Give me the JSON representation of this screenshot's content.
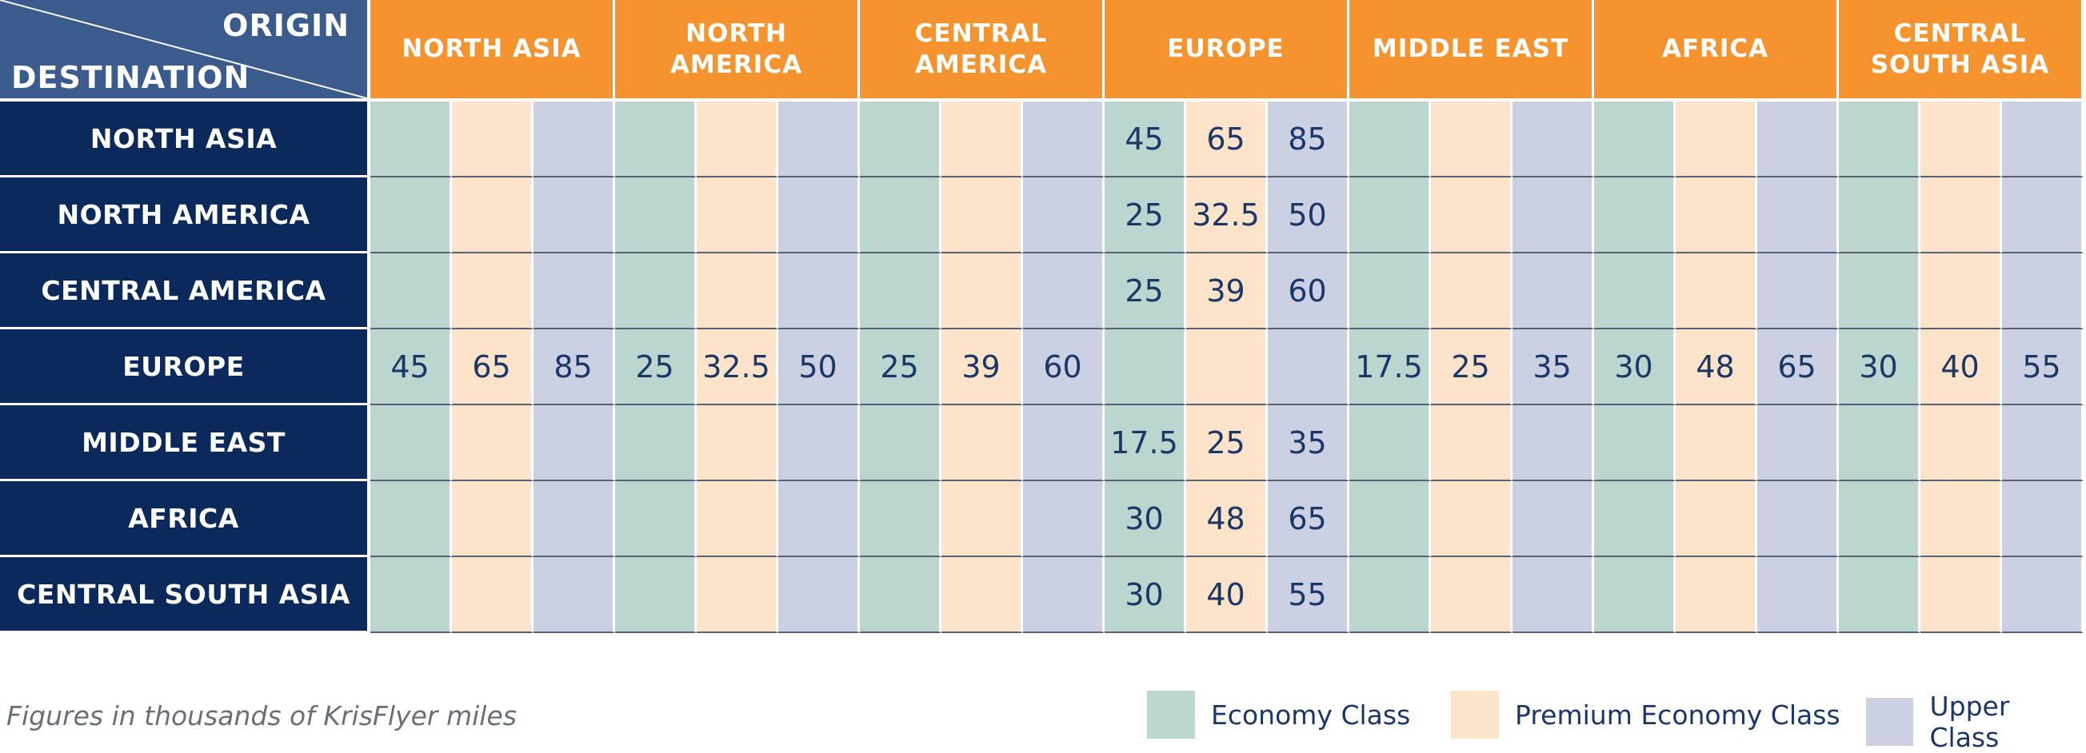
{
  "header": {
    "origin_label": "ORIGIN",
    "destination_label": "DESTINATION"
  },
  "origins": [
    "NORTH ASIA",
    "NORTH AMERICA",
    "CENTRAL AMERICA",
    "EUROPE",
    "MIDDLE EAST",
    "AFRICA",
    "CENTRAL SOUTH ASIA"
  ],
  "destinations": [
    "NORTH ASIA",
    "NORTH AMERICA",
    "CENTRAL AMERICA",
    "EUROPE",
    "MIDDLE EAST",
    "AFRICA",
    "CENTRAL SOUTH ASIA"
  ],
  "classes": [
    "Economy Class",
    "Premium Economy Class",
    "Upper Class"
  ],
  "values": [
    [
      [
        "",
        "",
        ""
      ],
      [
        "",
        "",
        ""
      ],
      [
        "",
        "",
        ""
      ],
      [
        "45",
        "65",
        "85"
      ],
      [
        "",
        "",
        ""
      ],
      [
        "",
        "",
        ""
      ],
      [
        "",
        "",
        ""
      ]
    ],
    [
      [
        "",
        "",
        ""
      ],
      [
        "",
        "",
        ""
      ],
      [
        "",
        "",
        ""
      ],
      [
        "25",
        "32.5",
        "50"
      ],
      [
        "",
        "",
        ""
      ],
      [
        "",
        "",
        ""
      ],
      [
        "",
        "",
        ""
      ]
    ],
    [
      [
        "",
        "",
        ""
      ],
      [
        "",
        "",
        ""
      ],
      [
        "",
        "",
        ""
      ],
      [
        "25",
        "39",
        "60"
      ],
      [
        "",
        "",
        ""
      ],
      [
        "",
        "",
        ""
      ],
      [
        "",
        "",
        ""
      ]
    ],
    [
      [
        "45",
        "65",
        "85"
      ],
      [
        "25",
        "32.5",
        "50"
      ],
      [
        "25",
        "39",
        "60"
      ],
      [
        "",
        "",
        ""
      ],
      [
        "17.5",
        "25",
        "35"
      ],
      [
        "30",
        "48",
        "65"
      ],
      [
        "30",
        "40",
        "55"
      ]
    ],
    [
      [
        "",
        "",
        ""
      ],
      [
        "",
        "",
        ""
      ],
      [
        "",
        "",
        ""
      ],
      [
        "17.5",
        "25",
        "35"
      ],
      [
        "",
        "",
        ""
      ],
      [
        "",
        "",
        ""
      ],
      [
        "",
        "",
        ""
      ]
    ],
    [
      [
        "",
        "",
        ""
      ],
      [
        "",
        "",
        ""
      ],
      [
        "",
        "",
        ""
      ],
      [
        "30",
        "48",
        "65"
      ],
      [
        "",
        "",
        ""
      ],
      [
        "",
        "",
        ""
      ],
      [
        "",
        "",
        ""
      ]
    ],
    [
      [
        "",
        "",
        ""
      ],
      [
        "",
        "",
        ""
      ],
      [
        "",
        "",
        ""
      ],
      [
        "30",
        "40",
        "55"
      ],
      [
        "",
        "",
        ""
      ],
      [
        "",
        "",
        ""
      ],
      [
        "",
        "",
        ""
      ]
    ]
  ],
  "footnote": "Figures in thousands of KrisFlyer miles",
  "legend": {
    "economy": "Economy Class",
    "premium": "Premium Economy Class",
    "upper": "Upper Class"
  },
  "colors": {
    "origin_header": "#f5942f",
    "destination_header": "#0b2a5b",
    "corner": "#3b5b8d",
    "economy": "#bad6cf",
    "premium_economy": "#fde3c9",
    "upper": "#cbd1e2",
    "value_text": "#1a3768"
  }
}
